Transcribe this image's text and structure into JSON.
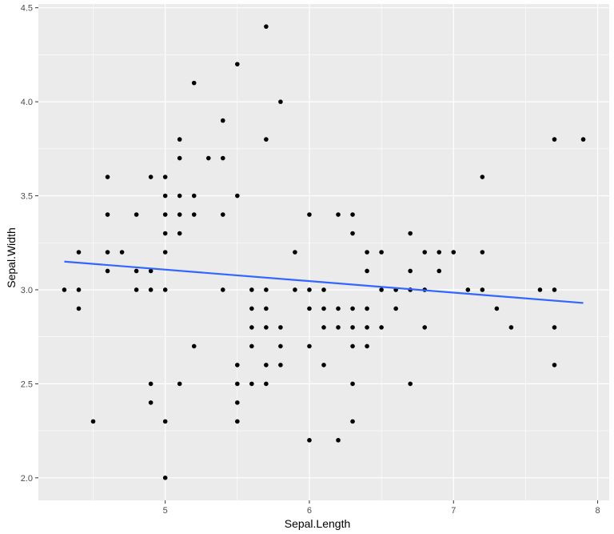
{
  "chart_data": {
    "type": "scatter",
    "title": "",
    "xlabel": "Sepal.Length",
    "ylabel": "Sepal.Width",
    "xlim": [
      4.12,
      8.08
    ],
    "ylim": [
      1.88,
      4.52
    ],
    "xticks": [
      5,
      6,
      7,
      8
    ],
    "xtick_labels": [
      "5",
      "6",
      "7",
      "8"
    ],
    "yticks": [
      2.0,
      2.5,
      3.0,
      3.5,
      4.0,
      4.5
    ],
    "ytick_labels": [
      "2.0",
      "2.5",
      "3.0",
      "3.5",
      "4.0",
      "4.5"
    ],
    "grid": true,
    "legend": "none",
    "colors": {
      "panel": "#ebebeb",
      "grid": "#ffffff",
      "points": "#000000",
      "trend": "#3366ff"
    },
    "trend_line": {
      "method": "lm",
      "x": [
        4.3,
        7.9
      ],
      "y": [
        3.15,
        2.93
      ]
    },
    "points": [
      {
        "x": 4.3,
        "y": 3.0
      },
      {
        "x": 4.4,
        "y": 2.9
      },
      {
        "x": 4.4,
        "y": 3.0
      },
      {
        "x": 4.4,
        "y": 3.2
      },
      {
        "x": 4.5,
        "y": 2.3
      },
      {
        "x": 4.6,
        "y": 3.1
      },
      {
        "x": 4.6,
        "y": 3.2
      },
      {
        "x": 4.6,
        "y": 3.4
      },
      {
        "x": 4.6,
        "y": 3.6
      },
      {
        "x": 4.7,
        "y": 3.2
      },
      {
        "x": 4.8,
        "y": 3.0
      },
      {
        "x": 4.8,
        "y": 3.1
      },
      {
        "x": 4.8,
        "y": 3.4
      },
      {
        "x": 4.9,
        "y": 2.4
      },
      {
        "x": 4.9,
        "y": 2.5
      },
      {
        "x": 4.9,
        "y": 3.0
      },
      {
        "x": 4.9,
        "y": 3.1
      },
      {
        "x": 4.9,
        "y": 3.6
      },
      {
        "x": 5.0,
        "y": 2.0
      },
      {
        "x": 5.0,
        "y": 2.3
      },
      {
        "x": 5.0,
        "y": 3.0
      },
      {
        "x": 5.0,
        "y": 3.2
      },
      {
        "x": 5.0,
        "y": 3.3
      },
      {
        "x": 5.0,
        "y": 3.4
      },
      {
        "x": 5.0,
        "y": 3.5
      },
      {
        "x": 5.0,
        "y": 3.6
      },
      {
        "x": 5.1,
        "y": 2.5
      },
      {
        "x": 5.1,
        "y": 3.3
      },
      {
        "x": 5.1,
        "y": 3.4
      },
      {
        "x": 5.1,
        "y": 3.5
      },
      {
        "x": 5.1,
        "y": 3.7
      },
      {
        "x": 5.1,
        "y": 3.8
      },
      {
        "x": 5.2,
        "y": 2.7
      },
      {
        "x": 5.2,
        "y": 3.4
      },
      {
        "x": 5.2,
        "y": 3.5
      },
      {
        "x": 5.2,
        "y": 4.1
      },
      {
        "x": 5.3,
        "y": 3.7
      },
      {
        "x": 5.4,
        "y": 3.0
      },
      {
        "x": 5.4,
        "y": 3.4
      },
      {
        "x": 5.4,
        "y": 3.7
      },
      {
        "x": 5.4,
        "y": 3.9
      },
      {
        "x": 5.5,
        "y": 2.3
      },
      {
        "x": 5.5,
        "y": 2.4
      },
      {
        "x": 5.5,
        "y": 2.5
      },
      {
        "x": 5.5,
        "y": 2.6
      },
      {
        "x": 5.5,
        "y": 3.5
      },
      {
        "x": 5.5,
        "y": 4.2
      },
      {
        "x": 5.6,
        "y": 2.5
      },
      {
        "x": 5.6,
        "y": 2.7
      },
      {
        "x": 5.6,
        "y": 2.8
      },
      {
        "x": 5.6,
        "y": 2.9
      },
      {
        "x": 5.6,
        "y": 3.0
      },
      {
        "x": 5.7,
        "y": 2.5
      },
      {
        "x": 5.7,
        "y": 2.6
      },
      {
        "x": 5.7,
        "y": 2.8
      },
      {
        "x": 5.7,
        "y": 2.9
      },
      {
        "x": 5.7,
        "y": 3.0
      },
      {
        "x": 5.7,
        "y": 3.8
      },
      {
        "x": 5.7,
        "y": 4.4
      },
      {
        "x": 5.8,
        "y": 2.6
      },
      {
        "x": 5.8,
        "y": 2.7
      },
      {
        "x": 5.8,
        "y": 2.8
      },
      {
        "x": 5.8,
        "y": 4.0
      },
      {
        "x": 5.9,
        "y": 3.0
      },
      {
        "x": 5.9,
        "y": 3.2
      },
      {
        "x": 6.0,
        "y": 2.2
      },
      {
        "x": 6.0,
        "y": 2.7
      },
      {
        "x": 6.0,
        "y": 2.9
      },
      {
        "x": 6.0,
        "y": 3.0
      },
      {
        "x": 6.0,
        "y": 3.4
      },
      {
        "x": 6.1,
        "y": 2.6
      },
      {
        "x": 6.1,
        "y": 2.8
      },
      {
        "x": 6.1,
        "y": 2.9
      },
      {
        "x": 6.1,
        "y": 3.0
      },
      {
        "x": 6.2,
        "y": 2.2
      },
      {
        "x": 6.2,
        "y": 2.8
      },
      {
        "x": 6.2,
        "y": 2.9
      },
      {
        "x": 6.2,
        "y": 3.4
      },
      {
        "x": 6.3,
        "y": 2.3
      },
      {
        "x": 6.3,
        "y": 2.5
      },
      {
        "x": 6.3,
        "y": 2.7
      },
      {
        "x": 6.3,
        "y": 2.8
      },
      {
        "x": 6.3,
        "y": 2.9
      },
      {
        "x": 6.3,
        "y": 3.3
      },
      {
        "x": 6.3,
        "y": 3.4
      },
      {
        "x": 6.4,
        "y": 2.7
      },
      {
        "x": 6.4,
        "y": 2.8
      },
      {
        "x": 6.4,
        "y": 2.9
      },
      {
        "x": 6.4,
        "y": 3.1
      },
      {
        "x": 6.4,
        "y": 3.2
      },
      {
        "x": 6.5,
        "y": 2.8
      },
      {
        "x": 6.5,
        "y": 3.0
      },
      {
        "x": 6.5,
        "y": 3.2
      },
      {
        "x": 6.6,
        "y": 2.9
      },
      {
        "x": 6.6,
        "y": 3.0
      },
      {
        "x": 6.7,
        "y": 2.5
      },
      {
        "x": 6.7,
        "y": 3.0
      },
      {
        "x": 6.7,
        "y": 3.1
      },
      {
        "x": 6.7,
        "y": 3.3
      },
      {
        "x": 6.8,
        "y": 2.8
      },
      {
        "x": 6.8,
        "y": 3.0
      },
      {
        "x": 6.8,
        "y": 3.2
      },
      {
        "x": 6.9,
        "y": 3.1
      },
      {
        "x": 6.9,
        "y": 3.2
      },
      {
        "x": 7.0,
        "y": 3.2
      },
      {
        "x": 7.1,
        "y": 3.0
      },
      {
        "x": 7.2,
        "y": 3.0
      },
      {
        "x": 7.2,
        "y": 3.2
      },
      {
        "x": 7.2,
        "y": 3.6
      },
      {
        "x": 7.3,
        "y": 2.9
      },
      {
        "x": 7.4,
        "y": 2.8
      },
      {
        "x": 7.6,
        "y": 3.0
      },
      {
        "x": 7.7,
        "y": 2.6
      },
      {
        "x": 7.7,
        "y": 2.8
      },
      {
        "x": 7.7,
        "y": 3.0
      },
      {
        "x": 7.7,
        "y": 3.8
      },
      {
        "x": 7.9,
        "y": 3.8
      }
    ]
  }
}
